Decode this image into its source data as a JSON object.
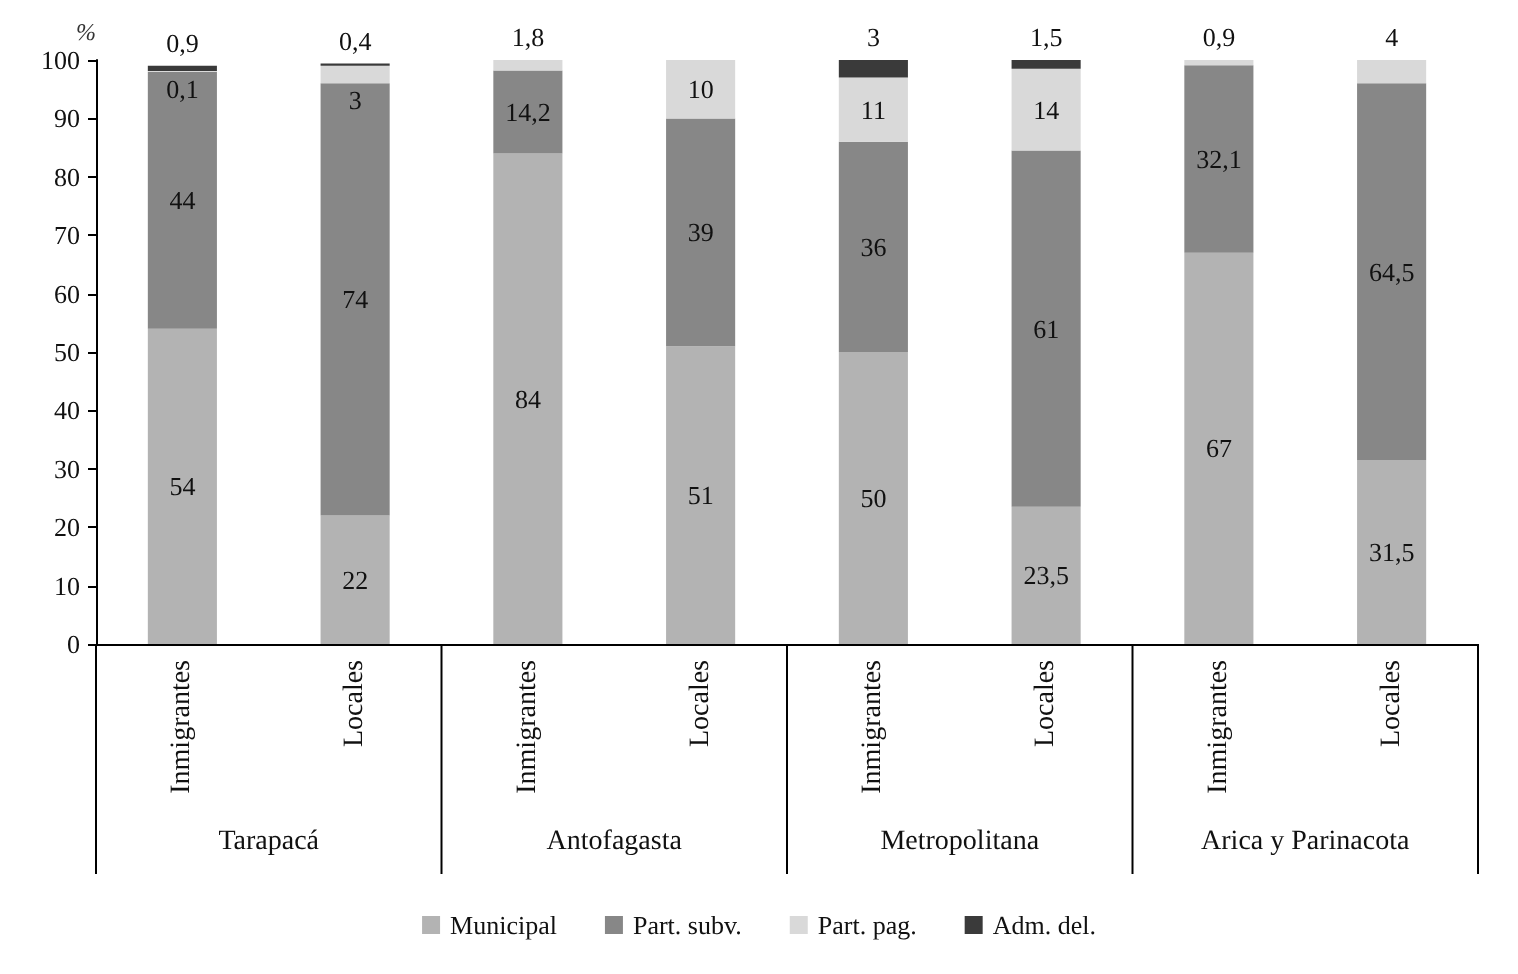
{
  "chart_data": {
    "type": "bar",
    "stacked": true,
    "ylabel": "%",
    "categories": [
      "Inmigrantes",
      "Locales",
      "Inmigrantes",
      "Locales",
      "Inmigrantes",
      "Locales",
      "Inmigrantes",
      "Locales"
    ],
    "annotations": [
      "Tarapacá",
      "Antofagasta",
      "Metropolitana",
      "Arica y Parinacota"
    ],
    "series": [
      {
        "name": "Municipal",
        "color": "#b3b3b3",
        "values": [
          54,
          22,
          84,
          51,
          50,
          23.5,
          67,
          31.5
        ],
        "value_labels": [
          "54",
          "22",
          "84",
          "51",
          "50",
          "23,5",
          "67",
          "31,5"
        ]
      },
      {
        "name": "Part. subv.",
        "color": "#878787",
        "values": [
          44,
          74,
          14.2,
          39,
          36,
          61,
          32.1,
          64.5
        ],
        "value_labels": [
          "44",
          "74",
          "14,2",
          "39",
          "36",
          "61",
          "32,1",
          "64,5"
        ]
      },
      {
        "name": "Part. pag.",
        "color": "#d9d9d9",
        "values": [
          0.1,
          3,
          1.8,
          10,
          11,
          14,
          0.9,
          4
        ],
        "value_labels": [
          "0,1",
          "3",
          "1,8",
          "10",
          "11",
          "14",
          "0,9",
          "4"
        ]
      },
      {
        "name": "Adm. del.",
        "color": "#3a3a3a",
        "values": [
          0.9,
          0.4,
          null,
          null,
          3,
          1.5,
          null,
          null
        ],
        "value_labels": [
          "0,9",
          "0,4",
          null,
          null,
          "3",
          "1,5",
          null,
          null
        ]
      }
    ],
    "ylim": [
      0,
      100
    ],
    "yticks": [
      0,
      10,
      20,
      30,
      40,
      50,
      60,
      70,
      80,
      90,
      100
    ],
    "grid": false,
    "legend": "bottom"
  }
}
